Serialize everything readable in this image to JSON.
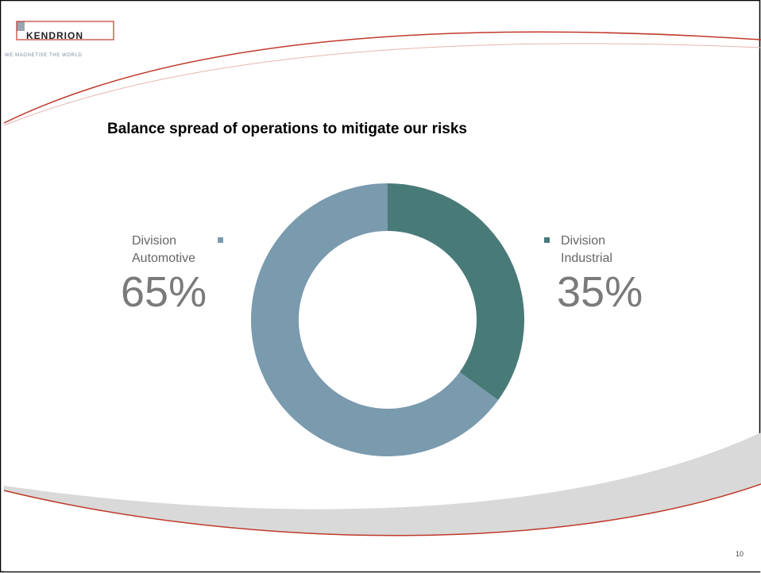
{
  "logo": {
    "name": "KENDRION",
    "tagline": "WE MAGNETISE THE WORLD"
  },
  "page_number": "10",
  "chart_data": {
    "type": "donut",
    "title": "Balance spread of operations to mitigate our risks",
    "categories": [
      "Division Industrial",
      "Division Automotive"
    ],
    "values": [
      35,
      65
    ],
    "value_labels": [
      "35%",
      "65%"
    ],
    "colors": [
      "#487a78",
      "#7a9aae"
    ]
  }
}
